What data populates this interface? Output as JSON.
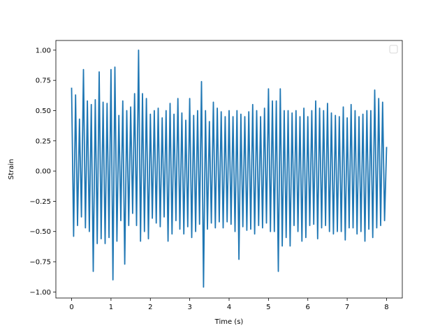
{
  "chart_data": {
    "type": "line",
    "title": "",
    "xlabel": "Time (s)",
    "ylabel": "Strain",
    "xlim": [
      -0.4,
      8.4
    ],
    "ylim": [
      -1.05,
      1.08
    ],
    "x_ticks": [
      0,
      1,
      2,
      3,
      4,
      5,
      6,
      7,
      8
    ],
    "y_ticks": [
      -1.0,
      -0.75,
      -0.5,
      -0.25,
      0.0,
      0.25,
      0.5,
      0.75,
      1.0
    ],
    "grid": false,
    "legend": {
      "placement": "top-right",
      "entries": []
    },
    "colors": {
      "line": "#1f77b4",
      "axes": "#000000",
      "background": "#ffffff"
    },
    "series": [
      {
        "x": [
          0,
          0.05,
          0.1,
          0.15,
          0.2,
          0.25,
          0.3,
          0.35,
          0.4,
          0.45,
          0.5,
          0.55,
          0.6,
          0.65,
          0.7,
          0.75,
          0.8,
          0.85,
          0.9,
          0.95,
          1.0,
          1.05,
          1.1,
          1.15,
          1.2,
          1.25,
          1.3,
          1.35,
          1.4,
          1.45,
          1.5,
          1.55,
          1.6,
          1.65,
          1.7,
          1.75,
          1.8,
          1.85,
          1.9,
          1.95,
          2.0,
          2.05,
          2.1,
          2.15,
          2.2,
          2.25,
          2.3,
          2.35,
          2.4,
          2.45,
          2.5,
          2.55,
          2.6,
          2.65,
          2.7,
          2.75,
          2.8,
          2.85,
          2.9,
          2.95,
          3.0,
          3.05,
          3.1,
          3.15,
          3.2,
          3.25,
          3.3,
          3.35,
          3.4,
          3.45,
          3.5,
          3.55,
          3.6,
          3.65,
          3.7,
          3.75,
          3.8,
          3.85,
          3.9,
          3.95,
          4.0,
          4.05,
          4.1,
          4.15,
          4.2,
          4.25,
          4.3,
          4.35,
          4.4,
          4.45,
          4.5,
          4.55,
          4.6,
          4.65,
          4.7,
          4.75,
          4.8,
          4.85,
          4.9,
          4.95,
          5.0,
          5.05,
          5.1,
          5.15,
          5.2,
          5.25,
          5.3,
          5.35,
          5.4,
          5.45,
          5.5,
          5.55,
          5.6,
          5.65,
          5.7,
          5.75,
          5.8,
          5.85,
          5.9,
          5.95,
          6.0,
          6.05,
          6.1,
          6.15,
          6.2,
          6.25,
          6.3,
          6.35,
          6.4,
          6.45,
          6.5,
          6.55,
          6.6,
          6.65,
          6.7,
          6.75,
          6.8,
          6.85,
          6.9,
          6.95,
          7.0,
          7.05,
          7.1,
          7.15,
          7.2,
          7.25,
          7.3,
          7.35,
          7.4,
          7.45,
          7.5,
          7.55,
          7.6,
          7.65,
          7.7,
          7.75,
          7.8,
          7.85,
          7.9,
          7.95,
          8.0
        ],
        "y": [
          0.69,
          -0.54,
          0.63,
          -0.45,
          0.43,
          -0.38,
          0.84,
          -0.47,
          0.58,
          -0.5,
          0.55,
          -0.83,
          0.59,
          -0.6,
          0.82,
          -0.56,
          0.57,
          -0.6,
          0.56,
          -0.55,
          0.84,
          -0.9,
          0.86,
          -0.58,
          0.46,
          -0.41,
          0.58,
          -0.77,
          0.5,
          -0.45,
          0.53,
          -0.35,
          0.64,
          -0.45,
          1.0,
          -0.58,
          0.64,
          -0.5,
          0.6,
          -0.56,
          0.47,
          -0.39,
          0.5,
          -0.43,
          0.52,
          -0.46,
          0.44,
          -0.38,
          0.5,
          -0.58,
          0.56,
          -0.52,
          0.47,
          -0.41,
          0.6,
          -0.48,
          0.48,
          -0.52,
          0.42,
          -0.46,
          0.6,
          -0.55,
          0.46,
          -0.5,
          0.5,
          -0.44,
          0.74,
          -0.96,
          0.5,
          -0.48,
          0.41,
          -0.43,
          0.57,
          -0.47,
          0.52,
          -0.42,
          0.49,
          -0.47,
          0.45,
          -0.42,
          0.5,
          -0.44,
          0.45,
          -0.5,
          0.5,
          -0.73,
          0.47,
          -0.46,
          0.45,
          -0.49,
          0.49,
          -0.48,
          0.55,
          -0.52,
          0.5,
          -0.45,
          0.45,
          -0.47,
          0.52,
          -0.43,
          0.68,
          -0.5,
          0.58,
          -0.5,
          0.58,
          -0.83,
          0.68,
          -0.62,
          0.5,
          -0.55,
          0.5,
          -0.62,
          0.48,
          -0.45,
          0.5,
          -0.5,
          0.45,
          -0.58,
          0.52,
          -0.55,
          0.45,
          -0.45,
          0.5,
          -0.44,
          0.58,
          -0.56,
          0.52,
          -0.47,
          0.5,
          -0.45,
          0.56,
          -0.5,
          0.48,
          -0.52,
          0.46,
          -0.5,
          0.45,
          -0.5,
          0.53,
          -0.57,
          0.44,
          -0.47,
          0.55,
          -0.47,
          0.5,
          -0.52,
          0.45,
          -0.5,
          0.47,
          -0.58,
          0.5,
          -0.48,
          0.5,
          -0.55,
          0.67,
          -0.47,
          0.6,
          -0.45,
          0.57,
          -0.41,
          0.2
        ]
      }
    ]
  }
}
